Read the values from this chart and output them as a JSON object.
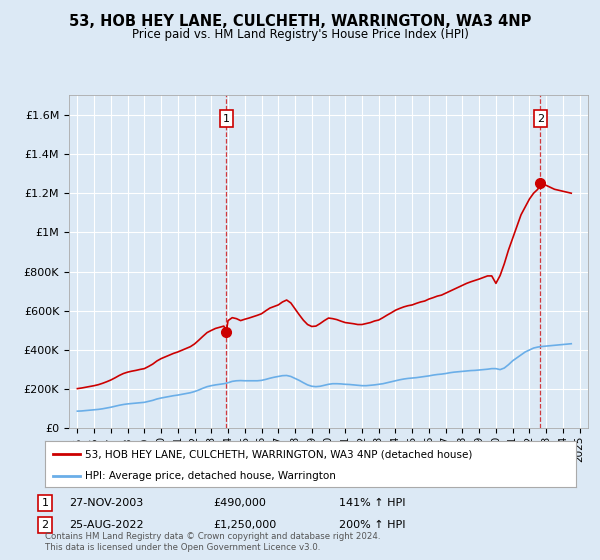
{
  "title": "53, HOB HEY LANE, CULCHETH, WARRINGTON, WA3 4NP",
  "subtitle": "Price paid vs. HM Land Registry's House Price Index (HPI)",
  "background_color": "#dce9f5",
  "plot_bg_color": "#dce9f5",
  "red_line_color": "#cc0000",
  "blue_line_color": "#6aaee8",
  "marker1_date": 2003.9,
  "marker1_value": 490000,
  "marker2_date": 2022.65,
  "marker2_value": 1250000,
  "vline1_date": 2003.9,
  "vline2_date": 2022.65,
  "ylim": [
    0,
    1700000
  ],
  "xlim": [
    1994.5,
    2025.5
  ],
  "yticks": [
    0,
    200000,
    400000,
    600000,
    800000,
    1000000,
    1200000,
    1400000,
    1600000
  ],
  "ytick_labels": [
    "£0",
    "£200K",
    "£400K",
    "£600K",
    "£800K",
    "£1M",
    "£1.2M",
    "£1.4M",
    "£1.6M"
  ],
  "xticks": [
    1995,
    1996,
    1997,
    1998,
    1999,
    2000,
    2001,
    2002,
    2003,
    2004,
    2005,
    2006,
    2007,
    2008,
    2009,
    2010,
    2011,
    2012,
    2013,
    2014,
    2015,
    2016,
    2017,
    2018,
    2019,
    2020,
    2021,
    2022,
    2023,
    2024,
    2025
  ],
  "legend_red_label": "53, HOB HEY LANE, CULCHETH, WARRINGTON, WA3 4NP (detached house)",
  "legend_blue_label": "HPI: Average price, detached house, Warrington",
  "annotation1_num": "1",
  "annotation1_date": "27-NOV-2003",
  "annotation1_price": "£490,000",
  "annotation1_hpi": "141% ↑ HPI",
  "annotation2_num": "2",
  "annotation2_date": "25-AUG-2022",
  "annotation2_price": "£1,250,000",
  "annotation2_hpi": "200% ↑ HPI",
  "footer1": "Contains HM Land Registry data © Crown copyright and database right 2024.",
  "footer2": "This data is licensed under the Open Government Licence v3.0.",
  "hpi_x": [
    1995.0,
    1995.25,
    1995.5,
    1995.75,
    1996.0,
    1996.25,
    1996.5,
    1996.75,
    1997.0,
    1997.25,
    1997.5,
    1997.75,
    1998.0,
    1998.25,
    1998.5,
    1998.75,
    1999.0,
    1999.25,
    1999.5,
    1999.75,
    2000.0,
    2000.25,
    2000.5,
    2000.75,
    2001.0,
    2001.25,
    2001.5,
    2001.75,
    2002.0,
    2002.25,
    2002.5,
    2002.75,
    2003.0,
    2003.25,
    2003.5,
    2003.75,
    2004.0,
    2004.25,
    2004.5,
    2004.75,
    2005.0,
    2005.25,
    2005.5,
    2005.75,
    2006.0,
    2006.25,
    2006.5,
    2006.75,
    2007.0,
    2007.25,
    2007.5,
    2007.75,
    2008.0,
    2008.25,
    2008.5,
    2008.75,
    2009.0,
    2009.25,
    2009.5,
    2009.75,
    2010.0,
    2010.25,
    2010.5,
    2010.75,
    2011.0,
    2011.25,
    2011.5,
    2011.75,
    2012.0,
    2012.25,
    2012.5,
    2012.75,
    2013.0,
    2013.25,
    2013.5,
    2013.75,
    2014.0,
    2014.25,
    2014.5,
    2014.75,
    2015.0,
    2015.25,
    2015.5,
    2015.75,
    2016.0,
    2016.25,
    2016.5,
    2016.75,
    2017.0,
    2017.25,
    2017.5,
    2017.75,
    2018.0,
    2018.25,
    2018.5,
    2018.75,
    2019.0,
    2019.25,
    2019.5,
    2019.75,
    2020.0,
    2020.25,
    2020.5,
    2020.75,
    2021.0,
    2021.25,
    2021.5,
    2021.75,
    2022.0,
    2022.25,
    2022.5,
    2022.75,
    2023.0,
    2023.25,
    2023.5,
    2023.75,
    2024.0,
    2024.25,
    2024.5
  ],
  "hpi_y": [
    88000,
    89000,
    91000,
    93000,
    95000,
    97000,
    100000,
    104000,
    108000,
    113000,
    118000,
    122000,
    125000,
    127000,
    129000,
    131000,
    133000,
    138000,
    143000,
    150000,
    155000,
    159000,
    163000,
    167000,
    170000,
    174000,
    178000,
    182000,
    188000,
    196000,
    205000,
    213000,
    218000,
    222000,
    225000,
    228000,
    233000,
    240000,
    243000,
    244000,
    243000,
    243000,
    243000,
    243000,
    245000,
    250000,
    256000,
    261000,
    265000,
    269000,
    270000,
    265000,
    255000,
    245000,
    233000,
    222000,
    215000,
    213000,
    215000,
    220000,
    225000,
    228000,
    228000,
    227000,
    225000,
    224000,
    222000,
    220000,
    218000,
    218000,
    220000,
    222000,
    225000,
    228000,
    233000,
    238000,
    243000,
    248000,
    252000,
    255000,
    257000,
    259000,
    262000,
    265000,
    268000,
    272000,
    275000,
    277000,
    280000,
    284000,
    287000,
    289000,
    291000,
    293000,
    295000,
    296000,
    298000,
    300000,
    302000,
    305000,
    305000,
    300000,
    308000,
    325000,
    345000,
    360000,
    375000,
    390000,
    400000,
    410000,
    415000,
    418000,
    420000,
    422000,
    424000,
    426000,
    428000,
    430000,
    432000
  ],
  "red_x": [
    1995.0,
    1995.25,
    1995.5,
    1995.75,
    1996.0,
    1996.25,
    1996.5,
    1996.75,
    1997.0,
    1997.25,
    1997.5,
    1997.75,
    1998.0,
    1998.25,
    1998.5,
    1998.75,
    1999.0,
    1999.25,
    1999.5,
    1999.75,
    2000.0,
    2000.25,
    2000.5,
    2000.75,
    2001.0,
    2001.25,
    2001.5,
    2001.75,
    2002.0,
    2002.25,
    2002.5,
    2002.75,
    2003.0,
    2003.25,
    2003.5,
    2003.75,
    2003.9,
    2004.0,
    2004.25,
    2004.5,
    2004.75,
    2005.0,
    2005.25,
    2005.5,
    2005.75,
    2006.0,
    2006.25,
    2006.5,
    2006.75,
    2007.0,
    2007.25,
    2007.5,
    2007.75,
    2008.0,
    2008.25,
    2008.5,
    2008.75,
    2009.0,
    2009.25,
    2009.5,
    2009.75,
    2010.0,
    2010.25,
    2010.5,
    2010.75,
    2011.0,
    2011.25,
    2011.5,
    2011.75,
    2012.0,
    2012.25,
    2012.5,
    2012.75,
    2013.0,
    2013.25,
    2013.5,
    2013.75,
    2014.0,
    2014.25,
    2014.5,
    2014.75,
    2015.0,
    2015.25,
    2015.5,
    2015.75,
    2016.0,
    2016.25,
    2016.5,
    2016.75,
    2017.0,
    2017.25,
    2017.5,
    2017.75,
    2018.0,
    2018.25,
    2018.5,
    2018.75,
    2019.0,
    2019.25,
    2019.5,
    2019.75,
    2020.0,
    2020.25,
    2020.5,
    2020.75,
    2021.0,
    2021.25,
    2021.5,
    2021.75,
    2022.0,
    2022.25,
    2022.5,
    2022.65,
    2022.75,
    2023.0,
    2023.25,
    2023.5,
    2023.75,
    2024.0,
    2024.25,
    2024.5
  ],
  "red_y": [
    203000,
    206000,
    210000,
    214000,
    218000,
    223000,
    230000,
    238000,
    247000,
    258000,
    270000,
    280000,
    287000,
    292000,
    296000,
    301000,
    305000,
    316000,
    328000,
    344000,
    356000,
    365000,
    374000,
    383000,
    390000,
    399000,
    408000,
    417000,
    431000,
    450000,
    470000,
    489000,
    500000,
    510000,
    516000,
    522000,
    490000,
    550000,
    565000,
    560000,
    550000,
    557000,
    563000,
    570000,
    577000,
    585000,
    600000,
    614000,
    622000,
    630000,
    645000,
    655000,
    640000,
    610000,
    580000,
    552000,
    530000,
    520000,
    522000,
    535000,
    550000,
    563000,
    560000,
    555000,
    547000,
    540000,
    537000,
    534000,
    530000,
    530000,
    535000,
    540000,
    548000,
    553000,
    565000,
    578000,
    590000,
    603000,
    612000,
    620000,
    626000,
    630000,
    638000,
    645000,
    650000,
    660000,
    667000,
    675000,
    680000,
    690000,
    700000,
    710000,
    720000,
    730000,
    740000,
    748000,
    755000,
    762000,
    770000,
    778000,
    778000,
    740000,
    780000,
    840000,
    910000,
    970000,
    1030000,
    1090000,
    1130000,
    1170000,
    1200000,
    1220000,
    1250000,
    1250000,
    1240000,
    1230000,
    1220000,
    1215000,
    1210000,
    1205000,
    1200000
  ]
}
